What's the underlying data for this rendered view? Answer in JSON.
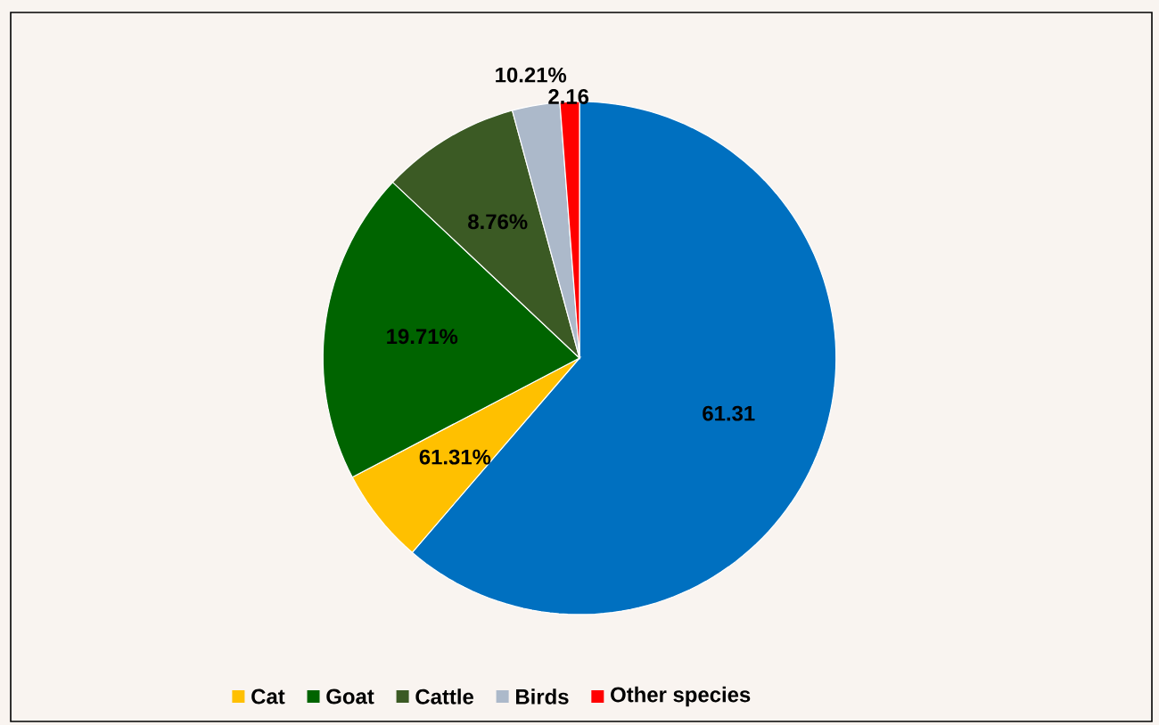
{
  "chart_data": {
    "type": "pie",
    "categories": [
      null,
      "Cat",
      "Goat",
      "Cattle",
      "Birds",
      "Other species"
    ],
    "values": [
      61.31,
      6.0,
      19.71,
      8.76,
      3.0,
      1.22
    ],
    "colors": [
      "#0070c0",
      "#ffc000",
      "#006400",
      "#3b5a24",
      "#acb9ca",
      "#ff0000"
    ],
    "annotations": [
      "61.31",
      "61.31%",
      "19.71%",
      "8.76%",
      "10.21%",
      "2.16"
    ],
    "legend": "bottom"
  }
}
